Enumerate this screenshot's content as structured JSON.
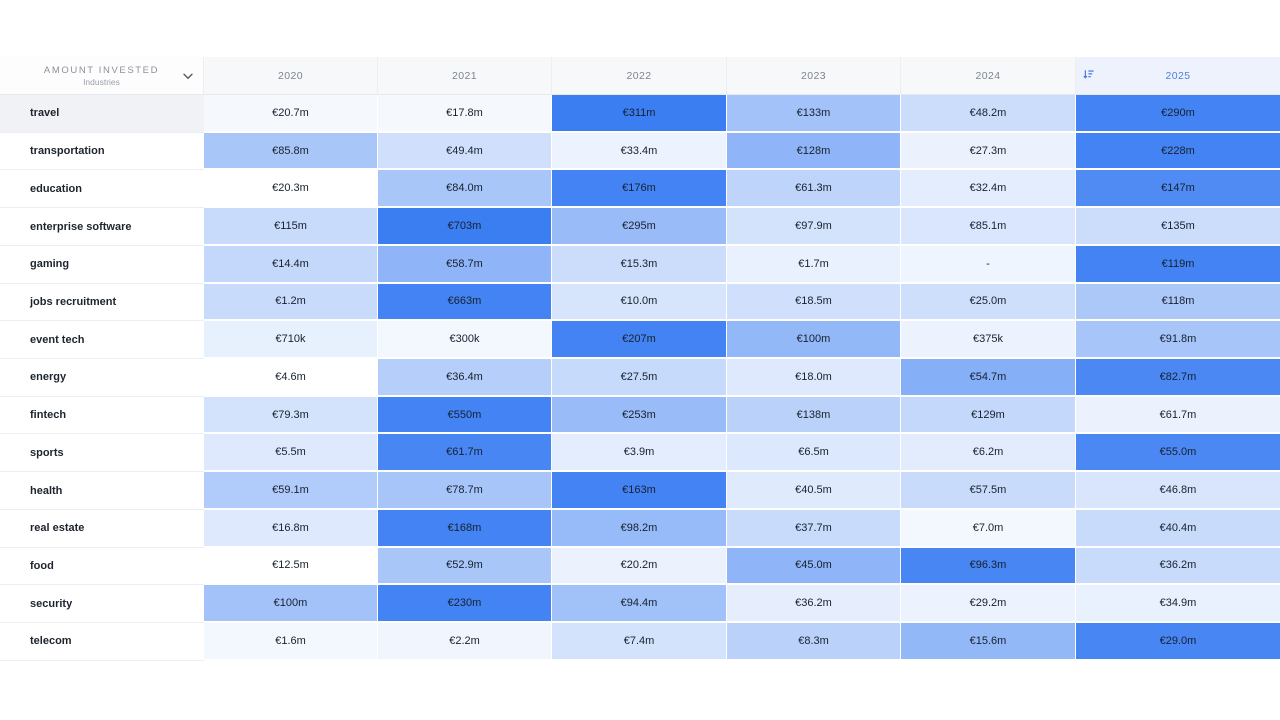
{
  "table": {
    "corner": {
      "title": "AMOUNT INVESTED",
      "subtitle": "Industries"
    },
    "columns": [
      {
        "label": "2020",
        "sorted": false
      },
      {
        "label": "2021",
        "sorted": false
      },
      {
        "label": "2022",
        "sorted": false
      },
      {
        "label": "2023",
        "sorted": false
      },
      {
        "label": "2024",
        "sorted": false
      },
      {
        "label": "2025",
        "sorted": true
      }
    ],
    "colors": {
      "cell_max_blue": "#3b7ef2",
      "cell_min": "#ffffff",
      "header_bg": "#f7f8fa",
      "sorted_header_bg": "#edf2fc",
      "sorted_header_text": "#4d7fe3",
      "header_text": "#7b8494",
      "value_text": "#17212e",
      "label_text": "#1e242e",
      "row_divider": "#eceef2",
      "highlighted_label_bg": "#f0f2f5"
    },
    "icons": {
      "corner": "chevron-down-icon",
      "sorted_column": "sort-descending-icon"
    },
    "rows": [
      {
        "industry": "travel",
        "highlighted": true,
        "cells": [
          {
            "v": "€20.7m",
            "t": 0.05
          },
          {
            "v": "€17.8m",
            "t": 0.05
          },
          {
            "v": "€311m",
            "t": 1.0
          },
          {
            "v": "€133m",
            "t": 0.47
          },
          {
            "v": "€48.2m",
            "t": 0.26
          },
          {
            "v": "€290m",
            "t": 0.96
          }
        ]
      },
      {
        "industry": "transportation",
        "highlighted": false,
        "cells": [
          {
            "v": "€85.8m",
            "t": 0.44
          },
          {
            "v": "€49.4m",
            "t": 0.24
          },
          {
            "v": "€33.4m",
            "t": 0.09
          },
          {
            "v": "€128m",
            "t": 0.57
          },
          {
            "v": "€27.3m",
            "t": 0.1
          },
          {
            "v": "€228m",
            "t": 0.96
          }
        ]
      },
      {
        "industry": "education",
        "highlighted": false,
        "cells": [
          {
            "v": "€20.3m",
            "t": 0.0
          },
          {
            "v": "€84.0m",
            "t": 0.44
          },
          {
            "v": "€176m",
            "t": 0.96
          },
          {
            "v": "€61.3m",
            "t": 0.33
          },
          {
            "v": "€32.4m",
            "t": 0.14
          },
          {
            "v": "€147m",
            "t": 0.9
          }
        ]
      },
      {
        "industry": "enterprise software",
        "highlighted": false,
        "cells": [
          {
            "v": "€115m",
            "t": 0.28
          },
          {
            "v": "€703m",
            "t": 1.0
          },
          {
            "v": "€295m",
            "t": 0.52
          },
          {
            "v": "€97.9m",
            "t": 0.22
          },
          {
            "v": "€85.1m",
            "t": 0.19
          },
          {
            "v": "€135m",
            "t": 0.26
          }
        ]
      },
      {
        "industry": "gaming",
        "highlighted": false,
        "cells": [
          {
            "v": "€14.4m",
            "t": 0.3
          },
          {
            "v": "€58.7m",
            "t": 0.57
          },
          {
            "v": "€15.3m",
            "t": 0.26
          },
          {
            "v": "€1.7m",
            "t": 0.11
          },
          {
            "v": "-",
            "t": 0.08
          },
          {
            "v": "€119m",
            "t": 0.96
          }
        ]
      },
      {
        "industry": "jobs recruitment",
        "highlighted": false,
        "cells": [
          {
            "v": "€1.2m",
            "t": 0.28
          },
          {
            "v": "€663m",
            "t": 0.96
          },
          {
            "v": "€10.0m",
            "t": 0.21
          },
          {
            "v": "€18.5m",
            "t": 0.24
          },
          {
            "v": "€25.0m",
            "t": 0.25
          },
          {
            "v": "€118m",
            "t": 0.43
          }
        ]
      },
      {
        "industry": "event tech",
        "highlighted": false,
        "cells": [
          {
            "v": "€710k",
            "t": 0.12
          },
          {
            "v": "€300k",
            "t": 0.06
          },
          {
            "v": "€207m",
            "t": 0.96
          },
          {
            "v": "€100m",
            "t": 0.55
          },
          {
            "v": "€375k",
            "t": 0.09
          },
          {
            "v": "€91.8m",
            "t": 0.45
          }
        ]
      },
      {
        "industry": "energy",
        "highlighted": false,
        "cells": [
          {
            "v": "€4.6m",
            "t": 0.0
          },
          {
            "v": "€36.4m",
            "t": 0.37
          },
          {
            "v": "€27.5m",
            "t": 0.29
          },
          {
            "v": "€18.0m",
            "t": 0.17
          },
          {
            "v": "€54.7m",
            "t": 0.62
          },
          {
            "v": "€82.7m",
            "t": 0.92
          }
        ]
      },
      {
        "industry": "fintech",
        "highlighted": false,
        "cells": [
          {
            "v": "€79.3m",
            "t": 0.22
          },
          {
            "v": "€550m",
            "t": 0.96
          },
          {
            "v": "€253m",
            "t": 0.52
          },
          {
            "v": "€138m",
            "t": 0.35
          },
          {
            "v": "€129m",
            "t": 0.3
          },
          {
            "v": "€61.7m",
            "t": 0.1
          }
        ]
      },
      {
        "industry": "sports",
        "highlighted": false,
        "cells": [
          {
            "v": "€5.5m",
            "t": 0.17
          },
          {
            "v": "€61.7m",
            "t": 0.94
          },
          {
            "v": "€3.9m",
            "t": 0.14
          },
          {
            "v": "€6.5m",
            "t": 0.18
          },
          {
            "v": "€6.2m",
            "t": 0.15
          },
          {
            "v": "€55.0m",
            "t": 0.92
          }
        ]
      },
      {
        "industry": "health",
        "highlighted": false,
        "cells": [
          {
            "v": "€59.1m",
            "t": 0.4
          },
          {
            "v": "€78.7m",
            "t": 0.45
          },
          {
            "v": "€163m",
            "t": 0.96
          },
          {
            "v": "€40.5m",
            "t": 0.16
          },
          {
            "v": "€57.5m",
            "t": 0.28
          },
          {
            "v": "€46.8m",
            "t": 0.2
          }
        ]
      },
      {
        "industry": "real estate",
        "highlighted": false,
        "cells": [
          {
            "v": "€16.8m",
            "t": 0.17
          },
          {
            "v": "€168m",
            "t": 0.96
          },
          {
            "v": "€98.2m",
            "t": 0.53
          },
          {
            "v": "€37.7m",
            "t": 0.28
          },
          {
            "v": "€7.0m",
            "t": 0.06
          },
          {
            "v": "€40.4m",
            "t": 0.28
          }
        ]
      },
      {
        "industry": "food",
        "highlighted": false,
        "cells": [
          {
            "v": "€12.5m",
            "t": 0.0
          },
          {
            "v": "€52.9m",
            "t": 0.44
          },
          {
            "v": "€20.2m",
            "t": 0.1
          },
          {
            "v": "€45.0m",
            "t": 0.57
          },
          {
            "v": "€96.3m",
            "t": 0.94
          },
          {
            "v": "€36.2m",
            "t": 0.28
          }
        ]
      },
      {
        "industry": "security",
        "highlighted": false,
        "cells": [
          {
            "v": "€100m",
            "t": 0.47
          },
          {
            "v": "€230m",
            "t": 0.96
          },
          {
            "v": "€94.4m",
            "t": 0.48
          },
          {
            "v": "€36.2m",
            "t": 0.13
          },
          {
            "v": "€29.2m",
            "t": 0.09
          },
          {
            "v": "€34.9m",
            "t": 0.11
          }
        ]
      },
      {
        "industry": "telecom",
        "highlighted": false,
        "cells": [
          {
            "v": "€1.6m",
            "t": 0.06
          },
          {
            "v": "€2.2m",
            "t": 0.07
          },
          {
            "v": "€7.4m",
            "t": 0.22
          },
          {
            "v": "€8.3m",
            "t": 0.35
          },
          {
            "v": "€15.6m",
            "t": 0.55
          },
          {
            "v": "€29.0m",
            "t": 0.94
          }
        ]
      }
    ]
  }
}
